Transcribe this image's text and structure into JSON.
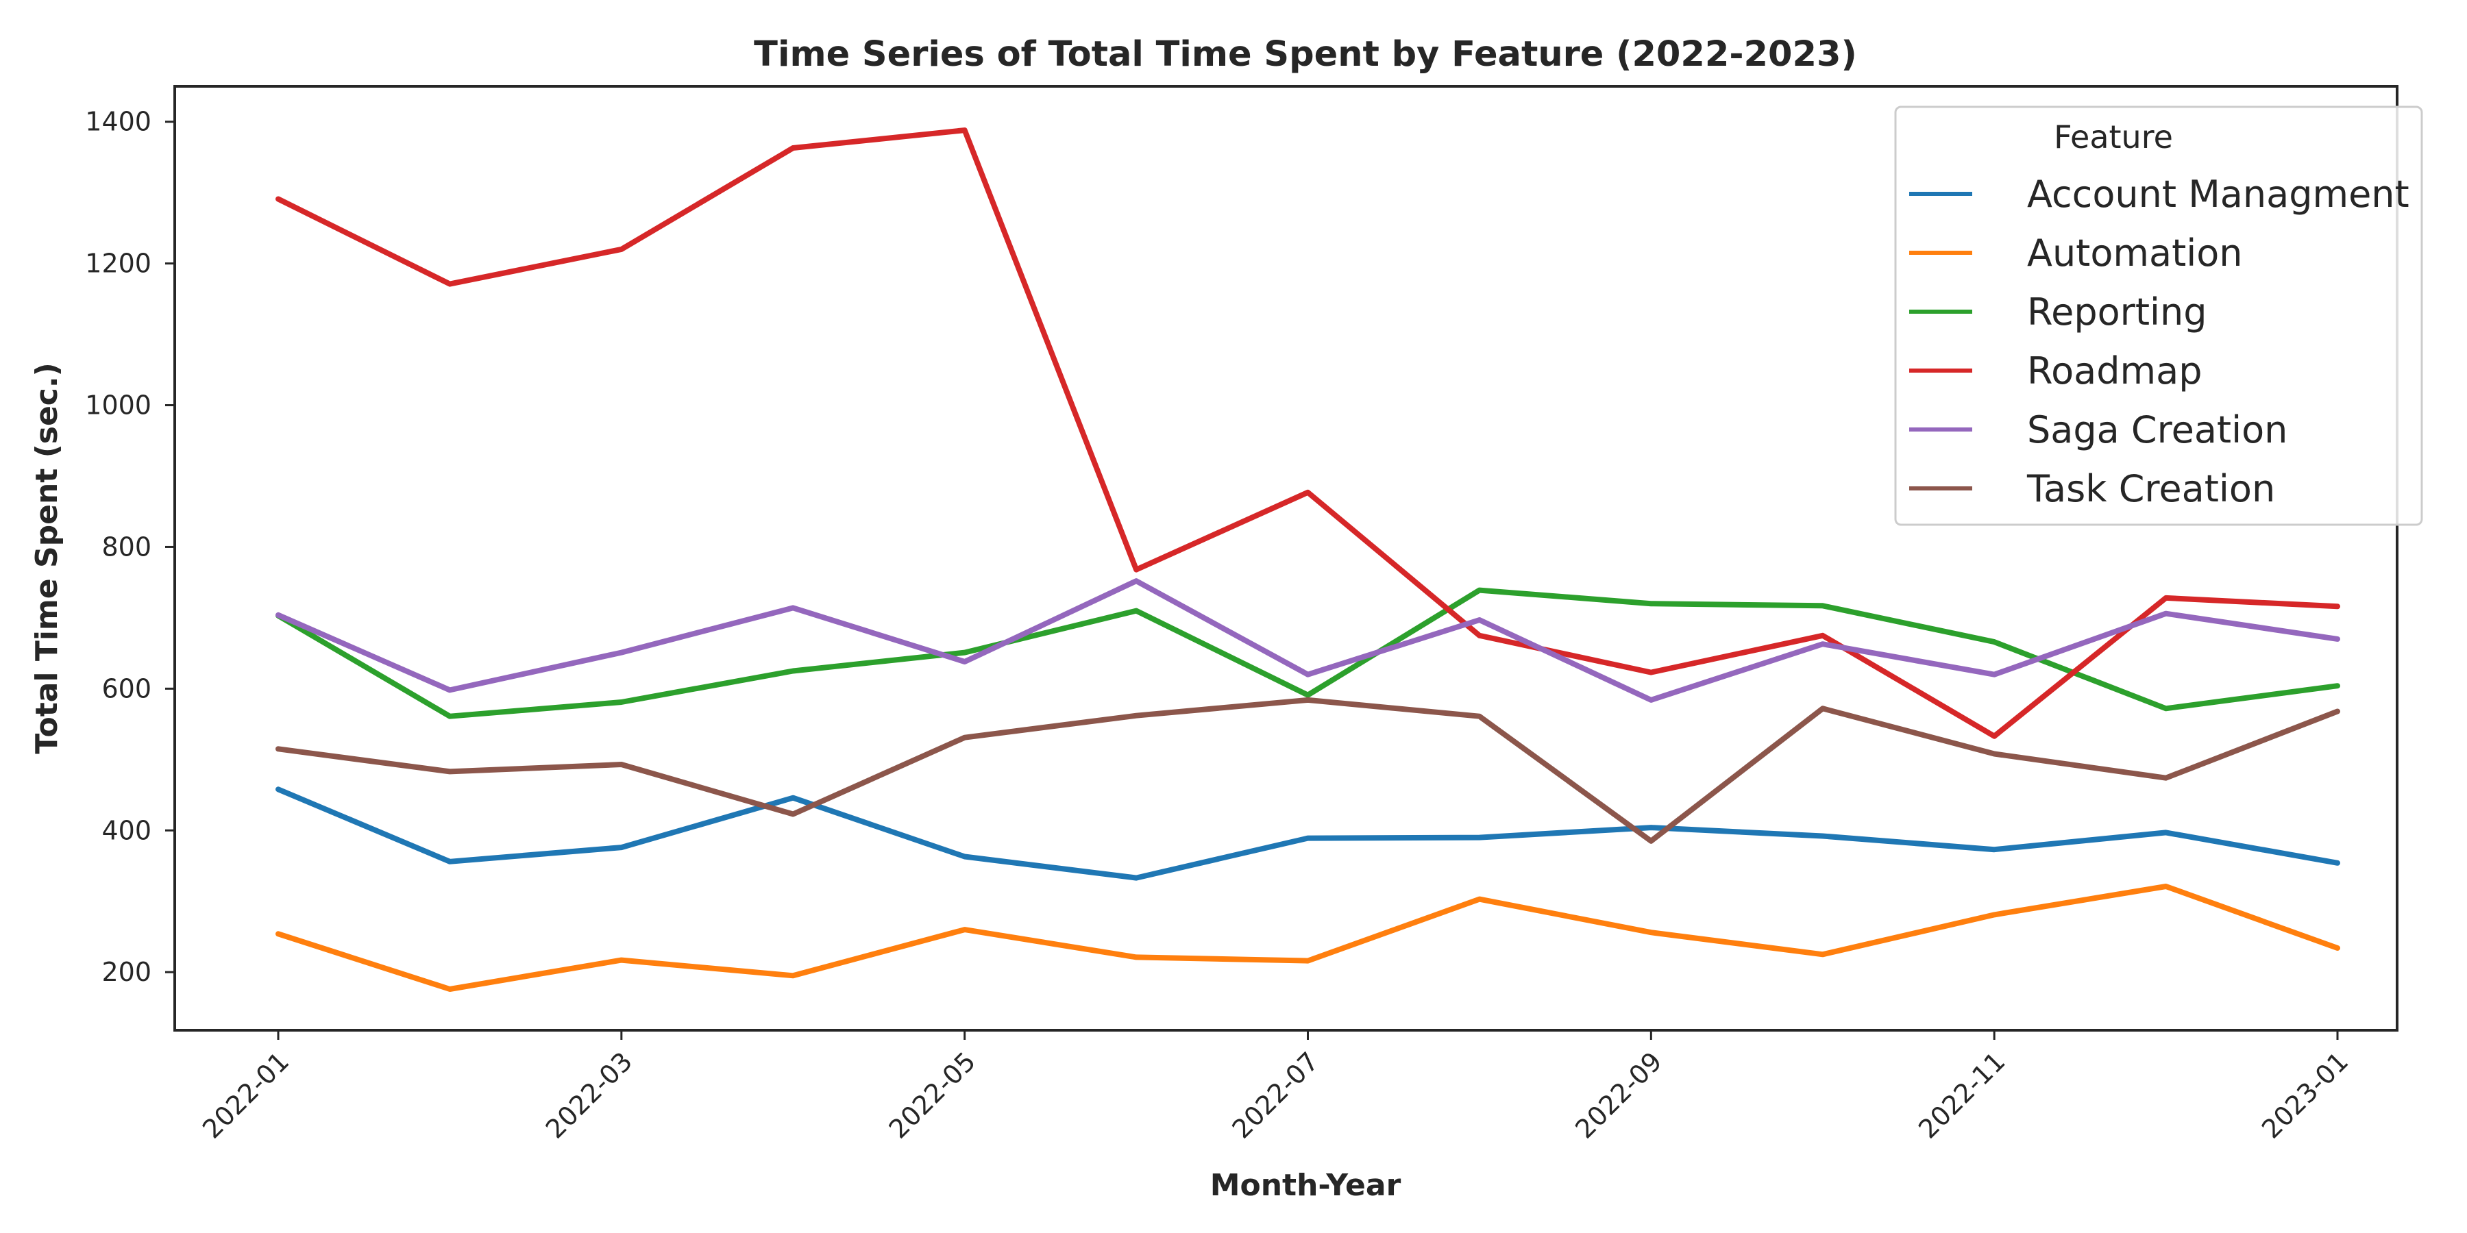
{
  "chart_data": {
    "type": "line",
    "title": "Time Series of Total Time Spent by Feature (2022-2023)",
    "xlabel": "Month-Year",
    "ylabel": "Total Time Spent (sec.)",
    "x": [
      "2022-01",
      "2022-02",
      "2022-03",
      "2022-04",
      "2022-05",
      "2022-06",
      "2022-07",
      "2022-08",
      "2022-09",
      "2022-10",
      "2022-11",
      "2022-12",
      "2023-01"
    ],
    "x_ticks": [
      "2022-01",
      "2022-03",
      "2022-05",
      "2022-07",
      "2022-09",
      "2022-11",
      "2023-01"
    ],
    "y_ticks": [
      200,
      400,
      600,
      800,
      1000,
      1200,
      1400
    ],
    "ylim": [
      118,
      1450
    ],
    "grid": false,
    "legend": {
      "title": "Feature",
      "position": "top-right"
    },
    "series": [
      {
        "name": "Account Managment",
        "color": "#1f77b4",
        "values": [
          458,
          356,
          376,
          446,
          363,
          333,
          389,
          390,
          404,
          392,
          373,
          397,
          354
        ]
      },
      {
        "name": "Automation",
        "color": "#ff7f0e",
        "values": [
          254,
          176,
          217,
          195,
          260,
          221,
          216,
          303,
          256,
          225,
          281,
          321,
          234
        ]
      },
      {
        "name": "Reporting",
        "color": "#2ca02c",
        "values": [
          703,
          561,
          581,
          625,
          651,
          710,
          591,
          739,
          720,
          717,
          666,
          572,
          604
        ]
      },
      {
        "name": "Roadmap",
        "color": "#d62728",
        "values": [
          1291,
          1171,
          1220,
          1363,
          1388,
          768,
          877,
          675,
          623,
          675,
          533,
          728,
          716
        ]
      },
      {
        "name": "Saga Creation",
        "color": "#9467bd",
        "values": [
          704,
          598,
          651,
          714,
          638,
          752,
          620,
          697,
          584,
          663,
          620,
          706,
          670
        ]
      },
      {
        "name": "Task Creation",
        "color": "#8c564b",
        "values": [
          515,
          483,
          493,
          423,
          531,
          562,
          584,
          561,
          385,
          572,
          508,
          474,
          568
        ]
      }
    ]
  }
}
